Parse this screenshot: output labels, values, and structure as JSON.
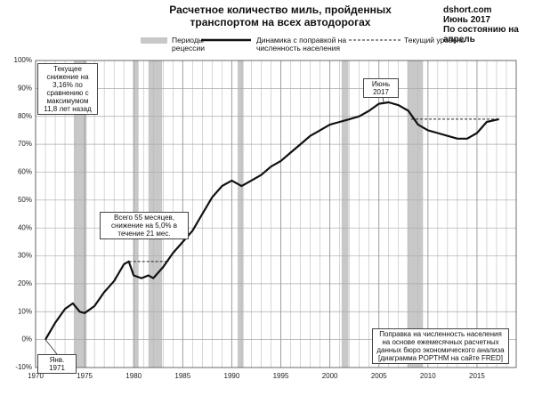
{
  "chart_data": {
    "type": "line",
    "title": "Расчетное количество миль, пройденных транспортом на всех автодорогах",
    "source": [
      "dshort.com",
      "Июнь 2017",
      "По состоянию на апрель"
    ],
    "recession_name": "Периоды рецессии",
    "recession_color": "#c8c8c8",
    "recessions": [
      [
        1973.9,
        1975.2
      ],
      [
        1980.0,
        1980.5
      ],
      [
        1981.5,
        1982.9
      ],
      [
        1990.6,
        1991.2
      ],
      [
        2001.2,
        2001.9
      ],
      [
        2007.9,
        2009.5
      ]
    ],
    "series": [
      {
        "name": "Динамика с поправкой на численность населения",
        "color": "#111111",
        "x": [
          1971,
          1972,
          1973,
          1973.8,
          1974.5,
          1975,
          1976,
          1977,
          1978,
          1979,
          1979.5,
          1980,
          1980.8,
          1981.5,
          1982,
          1983,
          1984,
          1985,
          1986,
          1987,
          1988,
          1989,
          1990,
          1991,
          1992,
          1993,
          1994,
          1995,
          1996,
          1997,
          1998,
          1999,
          2000,
          2001,
          2002,
          2003,
          2004,
          2005,
          2006,
          2007,
          2008,
          2009,
          2010,
          2011,
          2012,
          2013,
          2014,
          2015,
          2016,
          2017.25
        ],
        "values": [
          0,
          6,
          11,
          13,
          10,
          9.5,
          12,
          17,
          21,
          27,
          28,
          23,
          22,
          23,
          22,
          26,
          31,
          35,
          39,
          45,
          51,
          55,
          57,
          55,
          57,
          59,
          62,
          64,
          67,
          70,
          73,
          75,
          77,
          78,
          79,
          80,
          82,
          84.5,
          85,
          84,
          82,
          77,
          75,
          74,
          73,
          72,
          72,
          74,
          78,
          79
        ]
      }
    ],
    "reference_lines": [
      {
        "name": "Текущий уровень",
        "value": 79,
        "x": [
          2008.3,
          2017.3
        ]
      },
      {
        "value": 28,
        "x": [
          1979.5,
          1983.6
        ]
      }
    ],
    "annotations": [
      "Текущее снижение на 3,16% по сравнению с максимумом 11,8 лет назад",
      "Всего 55 месяцев, снижение на 5,0% в течение 21 мес.",
      "Июнь 2017",
      "Янв. 1971",
      "Поправка на численность населения на основе ежемесячных расчетных данных бюро экономического анализа [диаграмма POPTHM на сайте FRED]"
    ],
    "xlim": [
      1970,
      2019
    ],
    "xticks": [
      1970,
      1975,
      1980,
      1985,
      1990,
      1995,
      2000,
      2005,
      2010,
      2015
    ],
    "x_minor_step": 1,
    "ylim": [
      -10,
      100
    ],
    "yticks": [
      {
        "value": -10,
        "label": "-10%"
      },
      {
        "value": 0,
        "label": "0%"
      },
      {
        "value": 10,
        "label": "10%"
      },
      {
        "value": 20,
        "label": "20%"
      },
      {
        "value": 30,
        "label": "30%"
      },
      {
        "value": 40,
        "label": "40%"
      },
      {
        "value": 50,
        "label": "50%"
      },
      {
        "value": 60,
        "label": "60%"
      },
      {
        "value": 70,
        "label": "70%"
      },
      {
        "value": 80,
        "label": "80%"
      },
      {
        "value": 90,
        "label": "90%"
      },
      {
        "value": 100,
        "label": "100%"
      }
    ],
    "grid": true
  }
}
